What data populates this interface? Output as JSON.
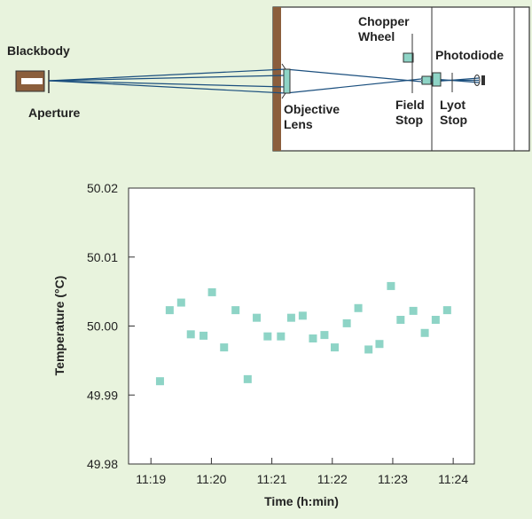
{
  "diagram": {
    "blackbody": "Blackbody",
    "aperture": "Aperture",
    "objective_lens": [
      "Objective",
      "Lens"
    ],
    "chopper_wheel": [
      "Chopper",
      "Wheel"
    ],
    "field_stop": [
      "Field",
      "Stop"
    ],
    "lyot_stop": [
      "Lyot",
      "Stop"
    ],
    "photodiode": "Photodiode"
  },
  "chart_data": {
    "type": "scatter",
    "x_label": "Time (h:min)",
    "y_label": "Temperature (°C)",
    "x": [
      679.15,
      679.31,
      679.5,
      679.66,
      679.87,
      680.01,
      680.21,
      680.4,
      680.6,
      680.75,
      680.93,
      681.15,
      681.32,
      681.51,
      681.68,
      681.87,
      682.04,
      682.24,
      682.43,
      682.6,
      682.78,
      682.97,
      683.13,
      683.34,
      683.53,
      683.71,
      683.9
    ],
    "values": [
      49.992,
      50.0023,
      50.0034,
      49.9988,
      49.9986,
      50.0049,
      49.9969,
      50.0023,
      49.9923,
      50.0012,
      49.9985,
      49.9985,
      50.0012,
      50.0015,
      49.9982,
      49.9987,
      49.9969,
      50.0004,
      50.0026,
      49.9966,
      49.9974,
      50.0058,
      50.0009,
      50.0022,
      49.999,
      50.0009,
      50.0023
    ],
    "color": "#8ed4c6",
    "xlim": [
      678.63,
      684.35
    ],
    "ylim": [
      49.98,
      50.02
    ],
    "xticks": [
      {
        "value": 679,
        "label": "11:19"
      },
      {
        "value": 680,
        "label": "11:20"
      },
      {
        "value": 681,
        "label": "11:21"
      },
      {
        "value": 682,
        "label": "11:22"
      },
      {
        "value": 683,
        "label": "11:23"
      },
      {
        "value": 684,
        "label": "11:24"
      }
    ],
    "yticks": [
      49.98,
      49.99,
      {
        "value": 50,
        "label": "50.00"
      },
      50.01,
      50.02
    ]
  }
}
